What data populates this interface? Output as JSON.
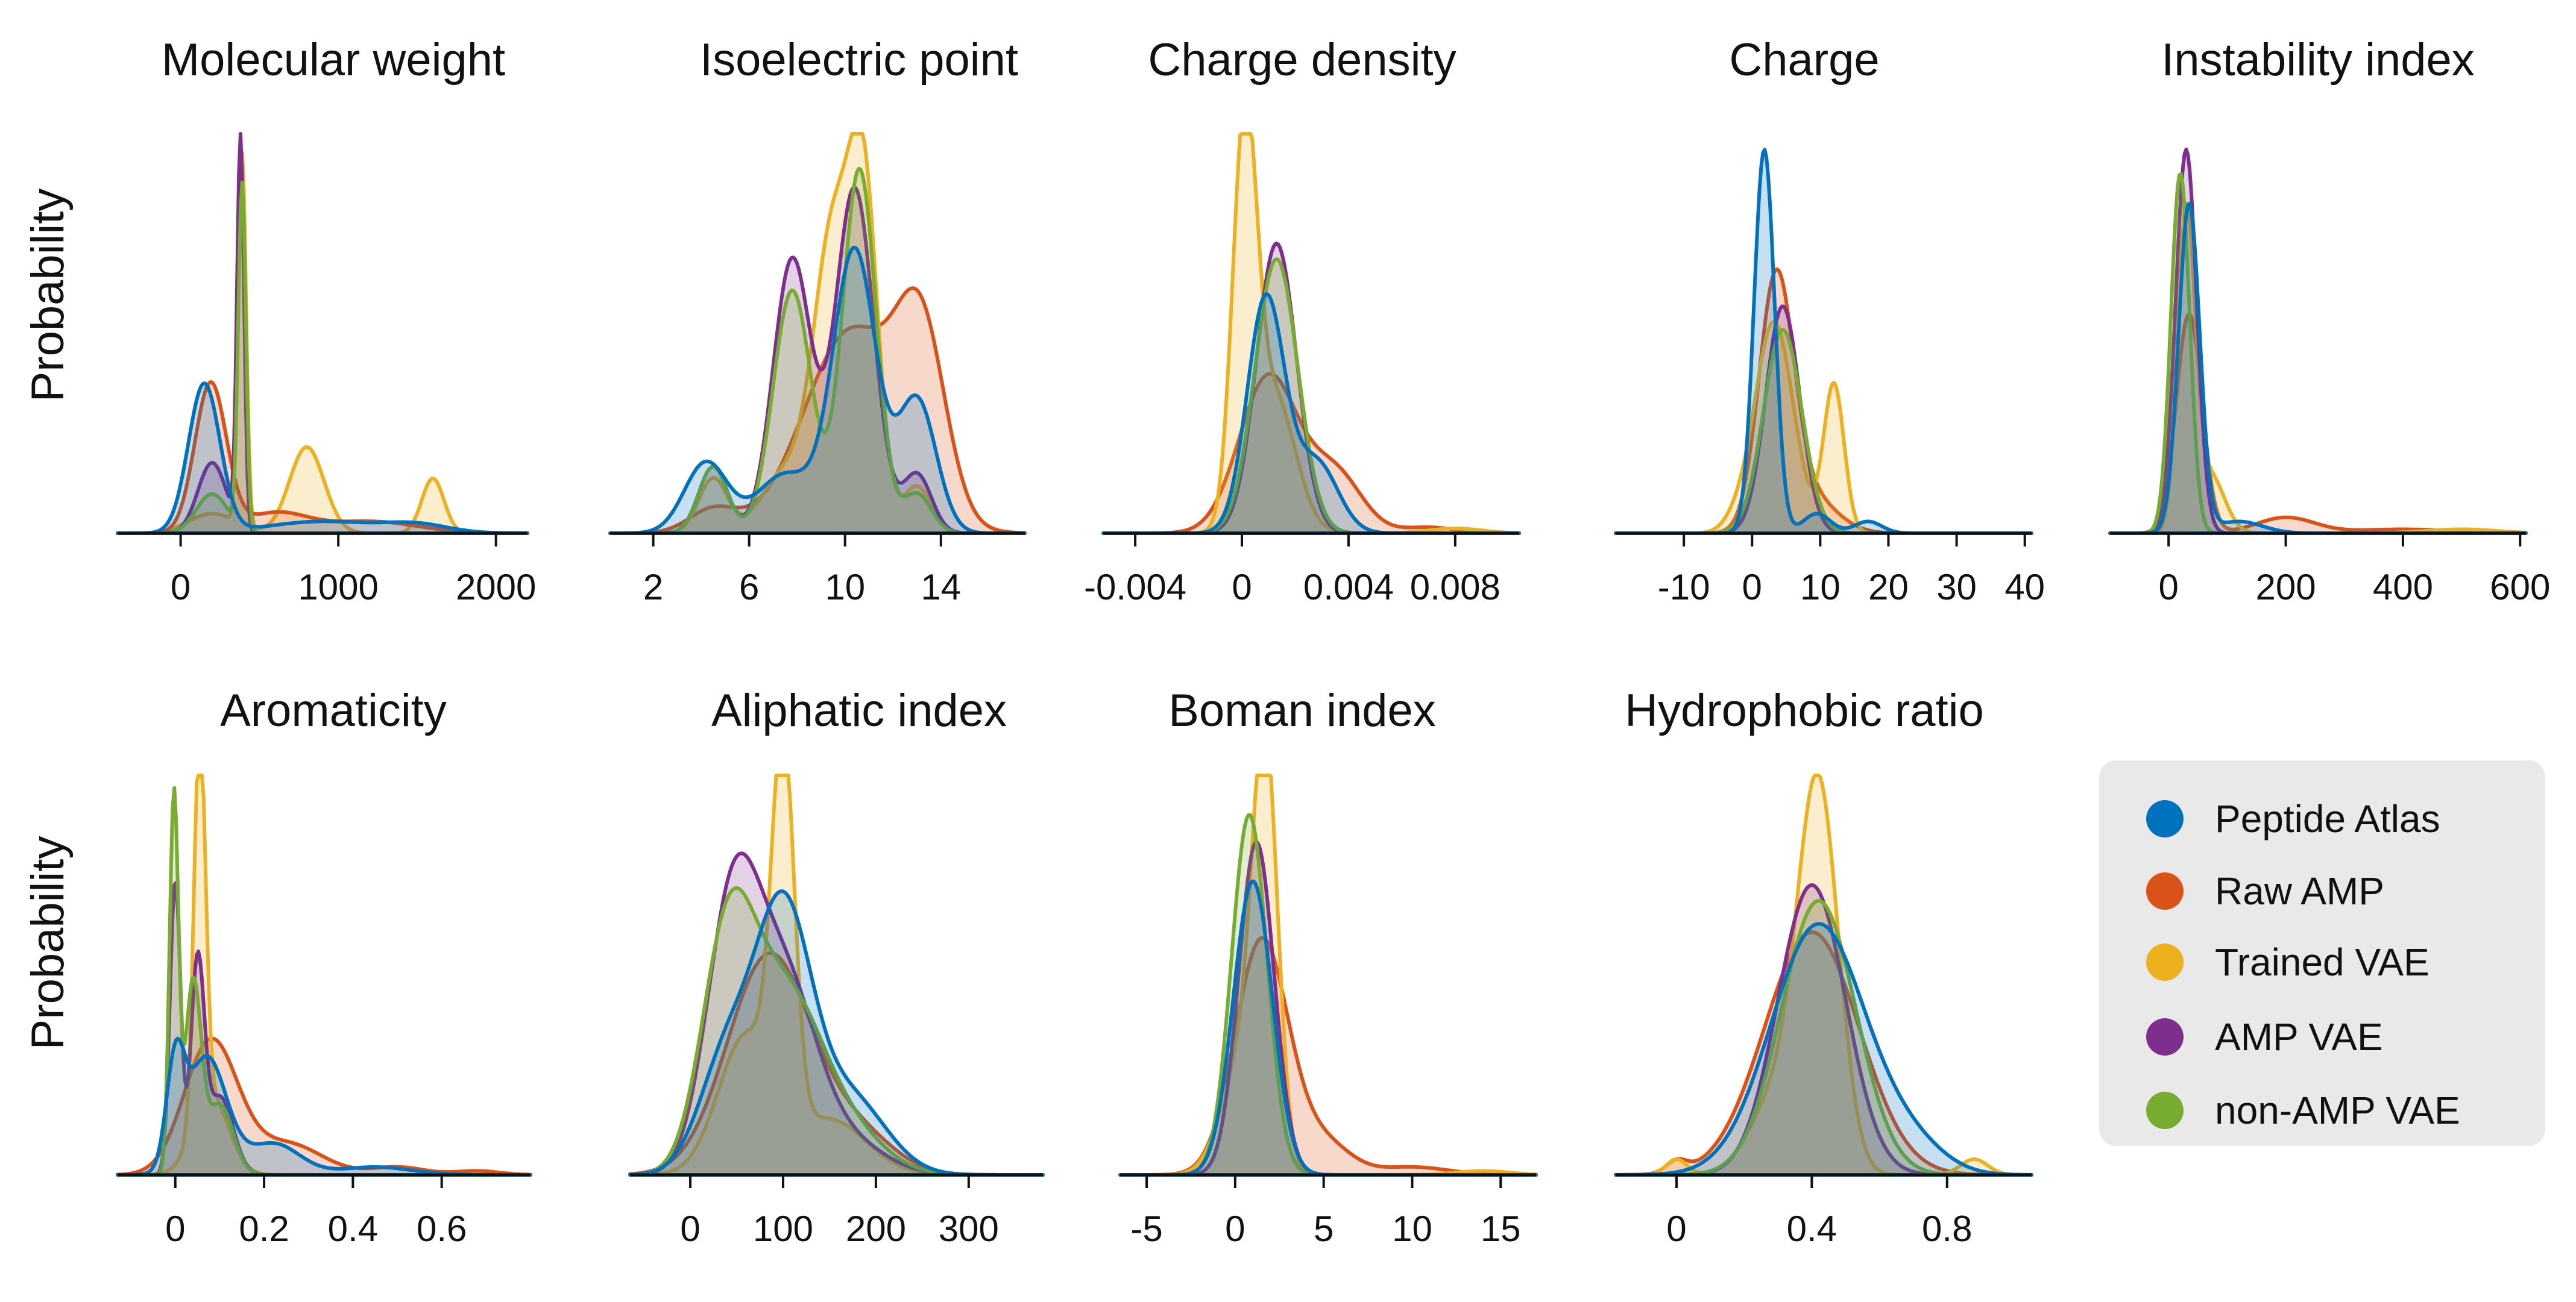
{
  "colors": {
    "Peptide Atlas": "#0072BD",
    "Raw AMP": "#D95319",
    "Trained VAE": "#EDB120",
    "AMP VAE": "#7E2F8E",
    "non-AMP VAE": "#77AC30"
  },
  "ylabel_top": "Probability",
  "ylabel_bottom": "Probability",
  "legend": {
    "entries": [
      "Peptide Atlas",
      "Raw AMP",
      "Trained VAE",
      "AMP VAE",
      "non-AMP VAE"
    ],
    "placement": "bottom-right"
  },
  "chart_data": [
    {
      "type": "area",
      "title": "Molecular weight",
      "xlabel": "",
      "ylabel": "Probability",
      "xlim": [
        -400,
        2200
      ],
      "xticks": [
        0,
        1000,
        2000
      ],
      "xtick_labels": [
        "0",
        "1000",
        "2000"
      ],
      "series": [
        {
          "name": "Trained VAE",
          "peaks": [
            [
              390,
              0.95,
              25
            ],
            [
              800,
              0.22,
              110
            ],
            [
              1600,
              0.14,
              70
            ],
            [
              200,
              0.05,
              150
            ]
          ]
        },
        {
          "name": "Raw AMP",
          "peaks": [
            [
              190,
              0.38,
              100
            ],
            [
              600,
              0.05,
              200
            ],
            [
              1200,
              0.03,
              300
            ]
          ]
        },
        {
          "name": "AMP VAE",
          "peaks": [
            [
              380,
              1.0,
              22
            ],
            [
              200,
              0.18,
              90
            ]
          ]
        },
        {
          "name": "non-AMP VAE",
          "peaks": [
            [
              390,
              0.88,
              24
            ],
            [
              200,
              0.1,
              100
            ]
          ]
        },
        {
          "name": "Peptide Atlas",
          "peaks": [
            [
              150,
              0.38,
              100
            ],
            [
              900,
              0.03,
              350
            ],
            [
              1500,
              0.02,
              200
            ]
          ]
        }
      ]
    },
    {
      "type": "area",
      "title": "Isoelectric point",
      "xlabel": "",
      "ylabel": "Probability",
      "xlim": [
        0.2,
        17.5
      ],
      "xticks": [
        2,
        6,
        10,
        14
      ],
      "xtick_labels": [
        "2",
        "6",
        "10",
        "14"
      ],
      "series": [
        {
          "name": "Raw AMP",
          "peaks": [
            [
              4.5,
              0.06,
              1.0
            ],
            [
              10.3,
              0.52,
              2.0
            ],
            [
              13.2,
              0.42,
              1.0
            ]
          ]
        },
        {
          "name": "Trained VAE",
          "peaks": [
            [
              4.5,
              0.14,
              0.6
            ],
            [
              7.5,
              0.15,
              1.0
            ],
            [
              9.5,
              0.75,
              0.8
            ],
            [
              10.8,
              0.8,
              0.6
            ],
            [
              13.0,
              0.12,
              0.6
            ]
          ]
        },
        {
          "name": "AMP VAE",
          "peaks": [
            [
              4.5,
              0.17,
              0.6
            ],
            [
              7.8,
              0.7,
              0.8
            ],
            [
              10.4,
              0.88,
              0.8
            ],
            [
              13.0,
              0.15,
              0.6
            ]
          ]
        },
        {
          "name": "non-AMP VAE",
          "peaks": [
            [
              4.5,
              0.17,
              0.6
            ],
            [
              7.8,
              0.62,
              0.8
            ],
            [
              10.6,
              0.93,
              0.7
            ],
            [
              13.0,
              0.1,
              0.6
            ]
          ]
        },
        {
          "name": "Peptide Atlas",
          "peaks": [
            [
              4.2,
              0.18,
              0.9
            ],
            [
              7.5,
              0.15,
              1.2
            ],
            [
              10.4,
              0.72,
              0.9
            ],
            [
              13.0,
              0.34,
              0.8
            ]
          ]
        }
      ]
    },
    {
      "type": "area",
      "title": "Charge density",
      "xlabel": "",
      "ylabel": "Probability",
      "xlim": [
        -0.0052,
        0.0104
      ],
      "xticks": [
        -0.004,
        0,
        0.004,
        0.008
      ],
      "xtick_labels": [
        "-0.004",
        "0",
        "0.004",
        "0.008"
      ],
      "series": [
        {
          "name": "Raw AMP",
          "peaks": [
            [
              0.001,
              0.4,
              0.0011
            ],
            [
              0.0035,
              0.15,
              0.001
            ],
            [
              0.007,
              0.015,
              0.001
            ]
          ]
        },
        {
          "name": "Trained VAE",
          "peaks": [
            [
              0.0001,
              0.98,
              0.00045
            ],
            [
              0.0012,
              0.35,
              0.0008
            ],
            [
              0.008,
              0.012,
              0.001
            ]
          ]
        },
        {
          "name": "AMP VAE",
          "peaks": [
            [
              0.0013,
              0.74,
              0.00075
            ]
          ]
        },
        {
          "name": "non-AMP VAE",
          "peaks": [
            [
              0.0013,
              0.7,
              0.0008
            ]
          ]
        },
        {
          "name": "Peptide Atlas",
          "peaks": [
            [
              0.0009,
              0.6,
              0.0007
            ],
            [
              0.0028,
              0.18,
              0.0008
            ]
          ]
        }
      ]
    },
    {
      "type": "area",
      "title": "Charge",
      "xlabel": "",
      "ylabel": "Probability",
      "xlim": [
        -20,
        41
      ],
      "xticks": [
        -10,
        0,
        10,
        20,
        30,
        40
      ],
      "xtick_labels": [
        "-10",
        "0",
        "10",
        "20",
        "30",
        "40"
      ],
      "series": [
        {
          "name": "Raw AMP",
          "peaks": [
            [
              3.5,
              0.62,
              2.5
            ],
            [
              8,
              0.1,
              4
            ]
          ]
        },
        {
          "name": "Trained VAE",
          "peaks": [
            [
              2.5,
              0.4,
              2.5
            ],
            [
              5,
              0.2,
              2.5
            ],
            [
              12,
              0.38,
              1.5
            ],
            [
              -2,
              0.04,
              2
            ]
          ]
        },
        {
          "name": "AMP VAE",
          "peaks": [
            [
              4.5,
              0.58,
              2.5
            ]
          ]
        },
        {
          "name": "non-AMP VAE",
          "peaks": [
            [
              4.5,
              0.52,
              2.8
            ]
          ]
        },
        {
          "name": "Peptide Atlas",
          "peaks": [
            [
              1.8,
              0.98,
              1.5
            ],
            [
              9.5,
              0.05,
              2
            ],
            [
              17,
              0.03,
              2
            ]
          ]
        }
      ]
    },
    {
      "type": "area",
      "title": "Instability index",
      "xlabel": "",
      "ylabel": "Probability",
      "xlim": [
        -100,
        610
      ],
      "xticks": [
        0,
        200,
        400,
        600
      ],
      "xtick_labels": [
        "0",
        "200",
        "400",
        "600"
      ],
      "series": [
        {
          "name": "Raw AMP",
          "peaks": [
            [
              35,
              0.56,
              22
            ],
            [
              200,
              0.04,
              50
            ],
            [
              400,
              0.01,
              80
            ]
          ]
        },
        {
          "name": "Trained VAE",
          "peaks": [
            [
              30,
              0.8,
              15
            ],
            [
              70,
              0.15,
              25
            ],
            [
              500,
              0.01,
              60
            ]
          ]
        },
        {
          "name": "AMP VAE",
          "peaks": [
            [
              30,
              0.98,
              18
            ]
          ]
        },
        {
          "name": "non-AMP VAE",
          "peaks": [
            [
              20,
              0.92,
              16
            ]
          ]
        },
        {
          "name": "Peptide Atlas",
          "peaks": [
            [
              35,
              0.84,
              18
            ],
            [
              120,
              0.03,
              40
            ]
          ]
        }
      ]
    },
    {
      "type": "area",
      "title": "Aromaticity",
      "xlabel": "",
      "ylabel": "Probability",
      "xlim": [
        -0.13,
        0.8
      ],
      "xticks": [
        0,
        0.2,
        0.4,
        0.6
      ],
      "xtick_labels": [
        "0",
        "0.2",
        "0.4",
        "0.6"
      ],
      "series": [
        {
          "name": "Raw AMP",
          "peaks": [
            [
              0.08,
              0.34,
              0.06
            ],
            [
              0.25,
              0.08,
              0.08
            ],
            [
              0.5,
              0.02,
              0.06
            ],
            [
              0.68,
              0.01,
              0.05
            ]
          ]
        },
        {
          "name": "Trained VAE",
          "peaks": [
            [
              0.055,
              0.98,
              0.013
            ],
            [
              0.08,
              0.2,
              0.04
            ]
          ]
        },
        {
          "name": "AMP VAE",
          "peaks": [
            [
              0.0,
              0.75,
              0.012
            ],
            [
              0.05,
              0.52,
              0.015
            ],
            [
              0.1,
              0.2,
              0.03
            ]
          ]
        },
        {
          "name": "non-AMP VAE",
          "peaks": [
            [
              -0.003,
              0.96,
              0.01
            ],
            [
              0.04,
              0.48,
              0.018
            ],
            [
              0.1,
              0.18,
              0.03
            ]
          ]
        },
        {
          "name": "Peptide Atlas",
          "peaks": [
            [
              0.0,
              0.25,
              0.02
            ],
            [
              0.07,
              0.3,
              0.045
            ],
            [
              0.22,
              0.08,
              0.06
            ],
            [
              0.45,
              0.02,
              0.08
            ]
          ]
        }
      ]
    },
    {
      "type": "area",
      "title": "Aliphatic index",
      "xlabel": "",
      "ylabel": "Probability",
      "xlim": [
        -65,
        380
      ],
      "xticks": [
        0,
        100,
        200,
        300
      ],
      "xtick_labels": [
        "0",
        "100",
        "200",
        "300"
      ],
      "series": [
        {
          "name": "Raw AMP",
          "peaks": [
            [
              85,
              0.56,
              45
            ],
            [
              180,
              0.1,
              40
            ]
          ]
        },
        {
          "name": "Trained VAE",
          "peaks": [
            [
              100,
              0.95,
              12
            ],
            [
              60,
              0.35,
              30
            ],
            [
              150,
              0.14,
              40
            ]
          ]
        },
        {
          "name": "AMP VAE",
          "peaks": [
            [
              45,
              0.65,
              28
            ],
            [
              100,
              0.48,
              35
            ],
            [
              170,
              0.08,
              40
            ]
          ]
        },
        {
          "name": "non-AMP VAE",
          "peaks": [
            [
              40,
              0.56,
              28
            ],
            [
              100,
              0.45,
              40
            ],
            [
              170,
              0.1,
              40
            ]
          ]
        },
        {
          "name": "Peptide Atlas",
          "peaks": [
            [
              100,
              0.64,
              30
            ],
            [
              170,
              0.2,
              40
            ],
            [
              40,
              0.3,
              30
            ]
          ]
        }
      ]
    },
    {
      "type": "area",
      "title": "Boman index",
      "xlabel": "",
      "ylabel": "Probability",
      "xlim": [
        -6.5,
        17
      ],
      "xticks": [
        -5,
        0,
        5,
        10,
        15
      ],
      "xtick_labels": [
        "-5",
        "0",
        "5",
        "10",
        "15"
      ],
      "series": [
        {
          "name": "Raw AMP",
          "peaks": [
            [
              1.5,
              0.6,
              1.5
            ],
            [
              5,
              0.08,
              1.5
            ],
            [
              10,
              0.02,
              2
            ]
          ]
        },
        {
          "name": "Trained VAE",
          "peaks": [
            [
              1.7,
              0.98,
              0.7
            ],
            [
              0.5,
              0.3,
              1.2
            ],
            [
              14,
              0.01,
              1.5
            ]
          ]
        },
        {
          "name": "AMP VAE",
          "peaks": [
            [
              1.2,
              0.85,
              1.0
            ]
          ]
        },
        {
          "name": "non-AMP VAE",
          "peaks": [
            [
              0.8,
              0.92,
              1.0
            ]
          ]
        },
        {
          "name": "Peptide Atlas",
          "peaks": [
            [
              1.0,
              0.75,
              1.1
            ]
          ]
        }
      ]
    },
    {
      "type": "area",
      "title": "Hydrophobic ratio",
      "xlabel": "",
      "ylabel": "Probability",
      "xlim": [
        -0.18,
        1.05
      ],
      "xticks": [
        0,
        0.4,
        0.8
      ],
      "xtick_labels": [
        "0",
        "0.4",
        "0.8"
      ],
      "series": [
        {
          "name": "Raw AMP",
          "peaks": [
            [
              0.4,
              0.62,
              0.14
            ],
            [
              0.0,
              0.03,
              0.03
            ]
          ]
        },
        {
          "name": "Trained VAE",
          "peaks": [
            [
              0.42,
              0.96,
              0.06
            ],
            [
              0.3,
              0.2,
              0.08
            ],
            [
              0.88,
              0.04,
              0.04
            ],
            [
              0.0,
              0.04,
              0.03
            ]
          ]
        },
        {
          "name": "AMP VAE",
          "peaks": [
            [
              0.4,
              0.74,
              0.1
            ]
          ]
        },
        {
          "name": "non-AMP VAE",
          "peaks": [
            [
              0.42,
              0.7,
              0.11
            ]
          ]
        },
        {
          "name": "Peptide Atlas",
          "peaks": [
            [
              0.42,
              0.64,
              0.14
            ],
            [
              0.7,
              0.06,
              0.1
            ]
          ]
        }
      ]
    }
  ]
}
